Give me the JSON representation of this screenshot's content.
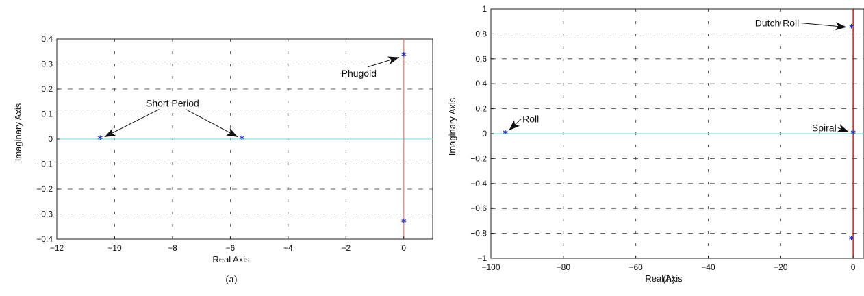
{
  "chart_data": [
    {
      "type": "scatter",
      "caption": "(a)",
      "xlabel": "Real Axis",
      "ylabel": "Imaginary Axis",
      "xlim": [
        -12,
        1
      ],
      "ylim": [
        -0.4,
        0.4
      ],
      "xticks": [
        -12,
        -10,
        -8,
        -6,
        -4,
        -2,
        0
      ],
      "yticks": [
        -0.4,
        -0.3,
        -0.2,
        -0.1,
        0,
        0.1,
        0.2,
        0.3,
        0.4
      ],
      "grid": true,
      "points": [
        {
          "x": -10.5,
          "y": 0
        },
        {
          "x": -5.6,
          "y": 0
        },
        {
          "x": 0,
          "y": 0.333
        },
        {
          "x": 0,
          "y": -0.333
        }
      ],
      "annotations": [
        {
          "text": "Short Period",
          "text_x": -8,
          "text_y": 0.13,
          "targets": [
            [
              -10.5,
              0
            ],
            [
              -5.6,
              0
            ]
          ]
        },
        {
          "text": "Phugoid",
          "text_x": -1.55,
          "text_y": 0.25,
          "targets": [
            [
              0,
              0.333
            ]
          ]
        }
      ]
    },
    {
      "type": "scatter",
      "caption": "(b)",
      "xlabel": "Real Axis",
      "ylabel": "Imaginary Axis",
      "xlim": [
        -100,
        3
      ],
      "ylim": [
        -1,
        1
      ],
      "xticks": [
        -100,
        -80,
        -60,
        -40,
        -20,
        0
      ],
      "yticks": [
        -1,
        -0.8,
        -0.6,
        -0.4,
        -0.2,
        0,
        0.2,
        0.4,
        0.6,
        0.8,
        1
      ],
      "grid": true,
      "points": [
        {
          "x": -96,
          "y": 0
        },
        {
          "x": 0,
          "y": 0
        },
        {
          "x": -0.5,
          "y": 0.85
        },
        {
          "x": -0.5,
          "y": -0.85
        }
      ],
      "annotations": [
        {
          "text": "Dutch Roll",
          "text_x": -21,
          "text_y": 0.86,
          "targets": [
            [
              -0.5,
              0.85
            ]
          ]
        },
        {
          "text": "Roll",
          "text_x": -89,
          "text_y": 0.09,
          "targets": [
            [
              -96,
              0
            ]
          ]
        },
        {
          "text": "Spiral",
          "text_x": -8,
          "text_y": 0.02,
          "targets": [
            [
              0,
              0
            ]
          ]
        }
      ]
    }
  ]
}
